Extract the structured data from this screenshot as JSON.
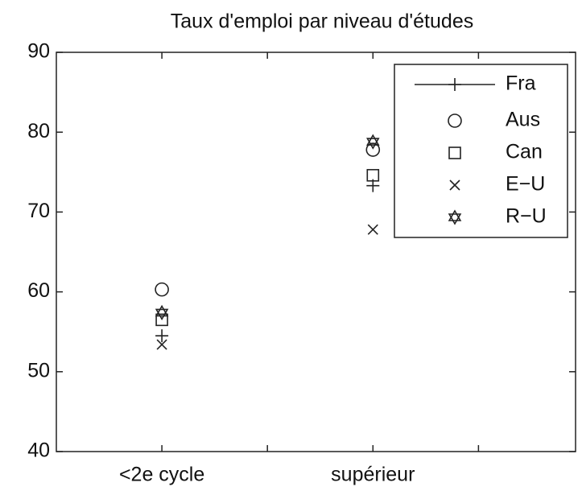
{
  "chart_data": {
    "type": "line",
    "title": "Taux d'emploi par niveau d'études",
    "categories": [
      "<2e cycle",
      null,
      "supérieur",
      null
    ],
    "series": [
      {
        "name": "Fra",
        "color": "#222222",
        "marker": "plus",
        "line": true,
        "values": [
          54.5,
          null,
          73.3,
          null
        ]
      },
      {
        "name": "Aus",
        "color": "#222222",
        "marker": "circle",
        "line": false,
        "values": [
          60.3,
          null,
          77.8,
          null
        ]
      },
      {
        "name": "Can",
        "color": "#222222",
        "marker": "square",
        "line": false,
        "values": [
          56.5,
          null,
          74.6,
          null
        ]
      },
      {
        "name": "E−U",
        "color": "#222222",
        "marker": "x",
        "line": false,
        "values": [
          53.4,
          null,
          67.8,
          null
        ]
      },
      {
        "name": "R−U",
        "color": "#222222",
        "marker": "hexagram",
        "line": false,
        "values": [
          57.4,
          null,
          78.8,
          null
        ]
      }
    ],
    "ylim": [
      40,
      90
    ],
    "yticks": [
      40,
      50,
      60,
      70,
      80,
      90
    ],
    "grid": false,
    "legend": "upper right"
  }
}
